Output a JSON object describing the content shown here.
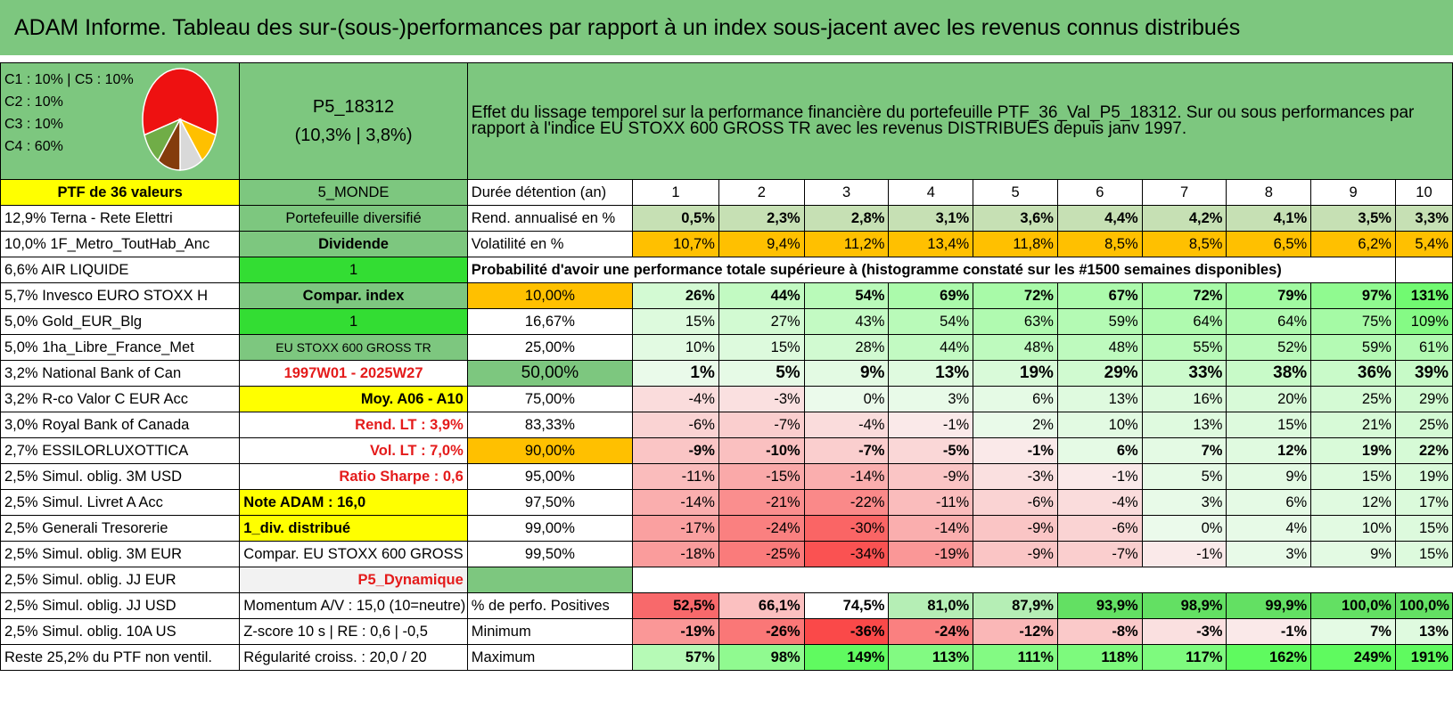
{
  "title": "ADAM Informe. Tableau des sur-(sous-)performances par rapport à un index sous-jacent avec les revenus connus distribués",
  "pie": {
    "legend": [
      "C1 : 10% | C5 : 10%",
      "C2 : 10%",
      "C3 : 10%",
      "C4 : 60%"
    ],
    "slices": [
      {
        "value": 60,
        "color": "#ee1111"
      },
      {
        "value": 10,
        "color": "#ffc000"
      },
      {
        "value": 10,
        "color": "#d9d9d9"
      },
      {
        "value": 10,
        "color": "#843c0c"
      },
      {
        "value": 10,
        "color": "#70ad47"
      }
    ]
  },
  "portfolio": {
    "code": "P5_18312",
    "stats": "(10,3% | 3,8%)"
  },
  "description_line1": "Effet du lissage temporel sur la performance financière du portefeuille PTF_36_Val_P5_18312. Sur ou sous performances par",
  "description_line2": "rapport à l'indice EU STOXX 600 GROSS TR avec les revenus DISTRIBUES depuis janv 1997.",
  "ptf_label": "PTF de 36 valeurs",
  "zone": "5_MONDE",
  "duration_label": "Durée détention (an)",
  "years": [
    "1",
    "2",
    "3",
    "4",
    "5",
    "6",
    "7",
    "8",
    "9",
    "10"
  ],
  "rows": [
    {
      "holding": "12,9% Terna - Rete Elettri",
      "info": "Portefeuille diversifié",
      "label": "Rend. annualisé en %",
      "values": [
        "0,5%",
        "2,3%",
        "2,8%",
        "3,1%",
        "3,6%",
        "4,4%",
        "4,2%",
        "4,1%",
        "3,5%",
        "3,3%"
      ]
    },
    {
      "holding": "10,0% 1F_Metro_ToutHab_Anc",
      "info": "Dividende",
      "label": "Volatilité en %",
      "values": [
        "10,7%",
        "9,4%",
        "11,2%",
        "13,4%",
        "11,8%",
        "8,5%",
        "8,5%",
        "6,5%",
        "6,2%",
        "5,4%"
      ]
    },
    {
      "holding": "6,6% AIR LIQUIDE",
      "info": "1",
      "prob_text": "Probabilité d'avoir une performance totale supérieure à (histogramme constaté sur les #1500 semaines disponibles)"
    },
    {
      "holding": "5,7% Invesco EURO STOXX H",
      "info": "Compar. index",
      "label": "10,00%",
      "values": [
        "26%",
        "44%",
        "54%",
        "69%",
        "72%",
        "67%",
        "72%",
        "79%",
        "97%",
        "131%"
      ]
    },
    {
      "holding": "5,0% Gold_EUR_Blg",
      "info": "1",
      "label": "16,67%",
      "values": [
        "15%",
        "27%",
        "43%",
        "54%",
        "63%",
        "59%",
        "64%",
        "64%",
        "75%",
        "109%"
      ]
    },
    {
      "holding": "5,0% 1ha_Libre_France_Met",
      "info": "EU STOXX 600 GROSS TR",
      "label": "25,00%",
      "values": [
        "10%",
        "15%",
        "28%",
        "44%",
        "48%",
        "48%",
        "55%",
        "52%",
        "59%",
        "61%"
      ]
    },
    {
      "holding": "3,2% National Bank of Can",
      "info": "1997W01 - 2025W27",
      "label": "50,00%",
      "values": [
        "1%",
        "5%",
        "9%",
        "13%",
        "19%",
        "29%",
        "33%",
        "38%",
        "36%",
        "39%"
      ]
    },
    {
      "holding": "3,2% R-co Valor C EUR Acc",
      "info": "Moy. A06 - A10",
      "label": "75,00%",
      "values": [
        "-4%",
        "-3%",
        "0%",
        "3%",
        "6%",
        "13%",
        "16%",
        "20%",
        "25%",
        "29%"
      ]
    },
    {
      "holding": "3,0% Royal Bank of Canada",
      "info": "Rend. LT : 3,9%",
      "label": "83,33%",
      "values": [
        "-6%",
        "-7%",
        "-4%",
        "-1%",
        "2%",
        "10%",
        "13%",
        "15%",
        "21%",
        "25%"
      ]
    },
    {
      "holding": "2,7% ESSILORLUXOTTICA",
      "info": "Vol. LT : 7,0%",
      "label": "90,00%",
      "values": [
        "-9%",
        "-10%",
        "-7%",
        "-5%",
        "-1%",
        "6%",
        "7%",
        "12%",
        "19%",
        "22%"
      ]
    },
    {
      "holding": "2,5% Simul. oblig. 3M USD",
      "info": "Ratio Sharpe : 0,6",
      "label": "95,00%",
      "values": [
        "-11%",
        "-15%",
        "-14%",
        "-9%",
        "-3%",
        "-1%",
        "5%",
        "9%",
        "15%",
        "19%"
      ]
    },
    {
      "holding": "2,5% Simul. Livret A Acc",
      "info": "Note ADAM : 16,0",
      "label": "97,50%",
      "values": [
        "-14%",
        "-21%",
        "-22%",
        "-11%",
        "-6%",
        "-4%",
        "3%",
        "6%",
        "12%",
        "17%"
      ]
    },
    {
      "holding": "2,5% Generali Tresorerie",
      "info": "1_div. distribué",
      "label": "99,00%",
      "values": [
        "-17%",
        "-24%",
        "-30%",
        "-14%",
        "-9%",
        "-6%",
        "0%",
        "4%",
        "10%",
        "15%"
      ]
    },
    {
      "holding": "2,5% Simul. oblig. 3M EUR",
      "info": "Compar. EU STOXX 600 GROSS TR",
      "label": "99,50%",
      "values": [
        "-18%",
        "-25%",
        "-34%",
        "-19%",
        "-9%",
        "-7%",
        "-1%",
        "3%",
        "9%",
        "15%"
      ]
    },
    {
      "holding": "2,5% Simul. oblig. JJ EUR",
      "info": "P5_Dynamique"
    },
    {
      "holding": "2,5% Simul. oblig. JJ USD",
      "info": "Momentum A/V : 15,0 (10=neutre)",
      "label": "% de perfo. Positives",
      "values": [
        "52,5%",
        "66,1%",
        "74,5%",
        "81,0%",
        "87,9%",
        "93,9%",
        "98,9%",
        "99,9%",
        "100,0%",
        "100,0%"
      ]
    },
    {
      "holding": "2,5% Simul. oblig. 10A US",
      "info": "Z-score 10 s | RE : 0,6 | -0,5",
      "label": "Minimum",
      "values": [
        "-19%",
        "-26%",
        "-36%",
        "-24%",
        "-12%",
        "-8%",
        "-3%",
        "-1%",
        "7%",
        "13%"
      ]
    },
    {
      "holding": "Reste 25,2% du PTF non ventil.",
      "info": "Régularité croiss. : 20,0 / 20",
      "label": "Maximum",
      "values": [
        "57%",
        "98%",
        "149%",
        "113%",
        "111%",
        "118%",
        "117%",
        "162%",
        "249%",
        "191%"
      ]
    }
  ]
}
